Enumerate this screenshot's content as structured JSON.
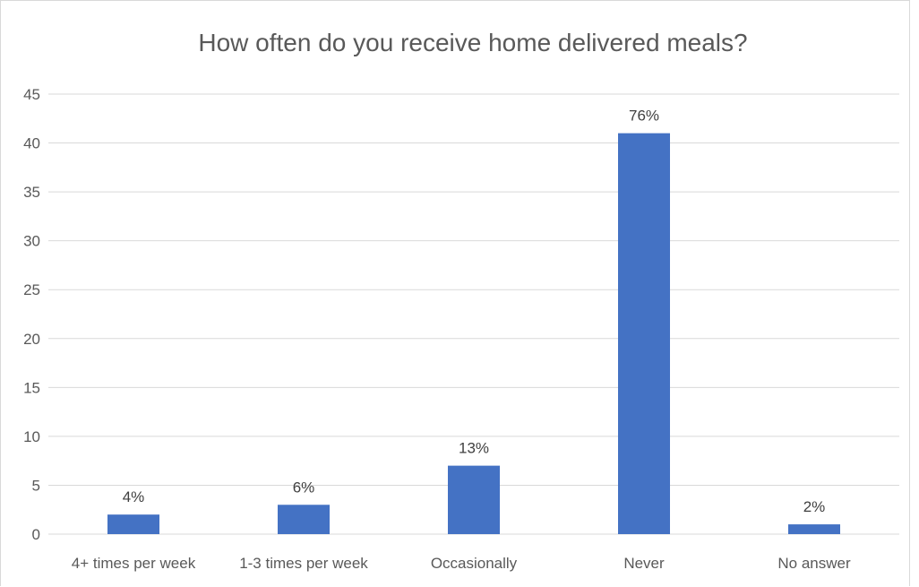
{
  "chart_data": {
    "type": "bar",
    "title": "How often do you receive home delivered meals?",
    "xlabel": "",
    "ylabel": "",
    "categories": [
      "4+ times per week",
      "1-3 times per week",
      "Occasionally",
      "Never",
      "No answer"
    ],
    "values": [
      2,
      3,
      7,
      41,
      1
    ],
    "data_labels": [
      "4%",
      "6%",
      "13%",
      "76%",
      "2%"
    ],
    "ylim": [
      0,
      45
    ],
    "yticks": [
      0,
      5,
      10,
      15,
      20,
      25,
      30,
      35,
      40,
      45
    ],
    "grid": true,
    "legend": "none",
    "bar_color": "#4472c4",
    "grid_color": "#d9d9d9",
    "text_color": "#595959"
  }
}
